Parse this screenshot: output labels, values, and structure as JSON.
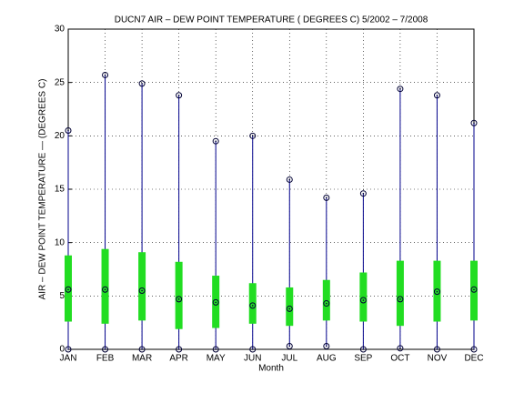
{
  "chart_data": {
    "type": "range",
    "title": "DUCN7  AIR – DEW POINT TEMPERATURE ( DEGREES C) 5/2002 – 7/2008",
    "x_label": "Month",
    "y_label": "AIR – DEW POINT TEMPERATURE  — (DEGREES C)",
    "categories": [
      "JAN",
      "FEB",
      "MAR",
      "APR",
      "MAY",
      "JUN",
      "JUL",
      "AUG",
      "SEP",
      "OCT",
      "NOV",
      "DEC"
    ],
    "max": [
      20.5,
      25.7,
      24.9,
      23.8,
      19.5,
      20.0,
      15.9,
      14.2,
      14.6,
      24.4,
      23.8,
      21.2
    ],
    "min": [
      0,
      0,
      0,
      0,
      0,
      0,
      0.3,
      0.3,
      0,
      0.1,
      0,
      0
    ],
    "mean": [
      5.6,
      5.6,
      5.5,
      4.7,
      4.4,
      4.1,
      3.8,
      4.3,
      4.6,
      4.7,
      5.4,
      5.6
    ],
    "box_low": [
      2.6,
      2.4,
      2.7,
      1.9,
      2.0,
      2.4,
      2.2,
      2.7,
      2.6,
      2.2,
      2.6,
      2.7
    ],
    "box_high": [
      8.8,
      9.4,
      9.1,
      8.2,
      6.9,
      6.2,
      5.8,
      6.5,
      7.2,
      8.3,
      8.3,
      8.3
    ],
    "line_color": "#00008b",
    "box_color": "#22dd22",
    "marker_color": "#000033",
    "ylim": [
      0,
      30
    ],
    "yticks": [
      0,
      5,
      10,
      15,
      20,
      25,
      30
    ],
    "grid": true
  }
}
